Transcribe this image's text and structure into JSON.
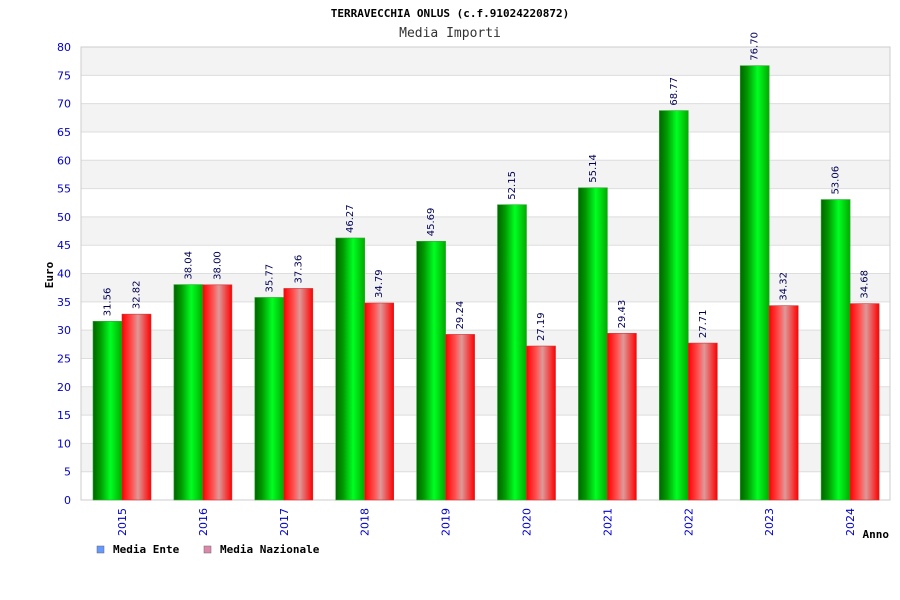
{
  "chart_data": {
    "type": "bar",
    "title": "TERRAVECCHIA ONLUS (c.f.91024220872)",
    "subtitle": "Media Importi",
    "xlabel": "Anno",
    "ylabel": "Euro",
    "ylim": [
      0,
      80
    ],
    "yticks": [
      0,
      5,
      10,
      15,
      20,
      25,
      30,
      35,
      40,
      45,
      50,
      55,
      60,
      65,
      70,
      75,
      80
    ],
    "categories": [
      "2015",
      "2016",
      "2017",
      "2018",
      "2019",
      "2020",
      "2021",
      "2022",
      "2023",
      "2024"
    ],
    "series": [
      {
        "name": "Media Ente",
        "color": "#00cc00",
        "legend_color": "#6699ff",
        "values": [
          31.56,
          38.04,
          35.77,
          46.27,
          45.69,
          52.15,
          55.14,
          68.77,
          76.7,
          53.06
        ],
        "labels": [
          "31.56",
          "38.04",
          "35.77",
          "46.27",
          "45.69",
          "52.15",
          "55.14",
          "68.77",
          "76.70",
          "53.06"
        ]
      },
      {
        "name": "Media Nazionale",
        "color": "#ff0000",
        "legend_color": "#dd88aa",
        "values": [
          32.82,
          38.0,
          37.36,
          34.79,
          29.24,
          27.19,
          29.43,
          27.71,
          34.32,
          34.68
        ],
        "labels": [
          "32.82",
          "38.00",
          "37.36",
          "34.79",
          "29.24",
          "27.19",
          "29.43",
          "27.71",
          "34.32",
          "34.68"
        ]
      }
    ],
    "grid": true,
    "legend_position": "bottom-left"
  }
}
